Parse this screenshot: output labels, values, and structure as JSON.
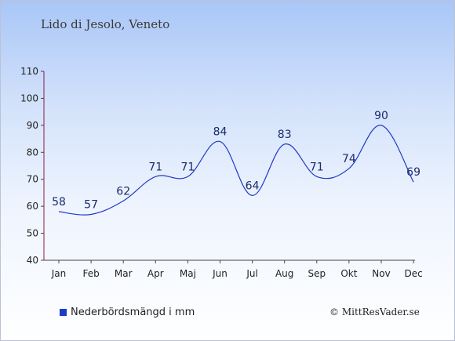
{
  "chart_data": {
    "type": "line",
    "title": "Lido di Jesolo, Veneto",
    "categories": [
      "Jan",
      "Feb",
      "Mar",
      "Apr",
      "Maj",
      "Jun",
      "Jul",
      "Aug",
      "Sep",
      "Okt",
      "Nov",
      "Dec"
    ],
    "series": [
      {
        "name": "Nederbördsmängd i mm",
        "values": [
          58,
          57,
          62,
          71,
          71,
          84,
          64,
          83,
          71,
          74,
          90,
          69
        ],
        "color": "#1f3ac7"
      }
    ],
    "yticks": [
      40,
      50,
      60,
      70,
      80,
      90,
      100,
      110
    ],
    "ylim": [
      40,
      110
    ],
    "xlabel": "",
    "ylabel": "",
    "grid": false,
    "legend": "bottom-left"
  },
  "footer": {
    "credit": "© MittResVader.se"
  }
}
